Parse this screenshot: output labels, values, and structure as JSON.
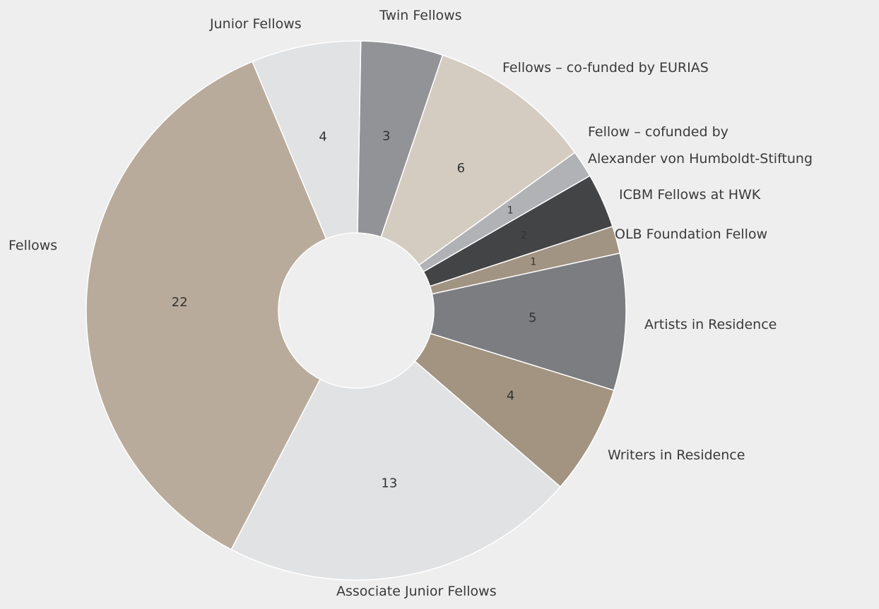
{
  "chart_data": {
    "type": "donut",
    "categories": [
      "Twin Fellows",
      "Fellows – co-funded by EURIAS",
      "Fellow – cofunded by\nAlexander von Humboldt-Stiftung",
      "ICBM Fellows at HWK",
      "OLB Foundation Fellow",
      "Artists in Residence",
      "Writers in Residence",
      "Associate Junior Fellows",
      "Fellows",
      "Junior Fellows"
    ],
    "values": [
      3,
      6,
      1,
      2,
      1,
      5,
      4,
      13,
      22,
      4
    ],
    "colors": [
      "#929397",
      "#d5ccc1",
      "#b1b2b5",
      "#434446",
      "#a29482",
      "#7c7d81",
      "#a29480",
      "#e1e2e4",
      "#b9ab9b",
      "#e1e2e4"
    ]
  }
}
